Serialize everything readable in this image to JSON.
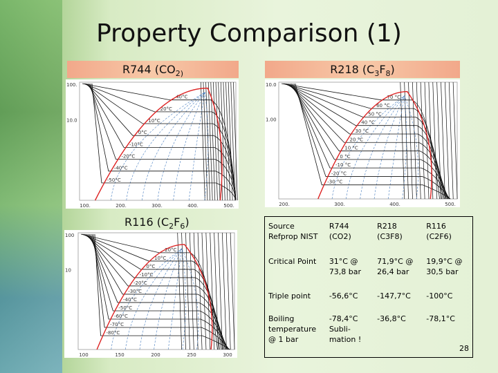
{
  "title": "Property Comparison (1)",
  "panels": [
    {
      "label": [
        "R744 (CO",
        "2)"
      ],
      "yticks": [
        "100.",
        "10.0"
      ],
      "xticks": [
        "100.",
        "200.",
        "300.",
        "400.",
        "500."
      ],
      "isotherms": [
        "40°C",
        "20°C",
        "10°C",
        "0°C",
        "-10°C",
        "-20°C",
        "-40°C",
        "-50°C"
      ]
    },
    {
      "label": [
        "R218 (C",
        "3",
        "F",
        "8",
        ")"
      ],
      "yticks": [
        "10.0",
        "1.00"
      ],
      "xticks": [
        "200.",
        "300.",
        "400.",
        "500."
      ],
      "isotherms": [
        "70 °C",
        "60 °C",
        "50 °C",
        "40 °C",
        "30 °C",
        "20 °C",
        "10 °C",
        "0 °C",
        "-10 °C",
        "-20 °C",
        "-30 °C"
      ]
    },
    {
      "label": [
        "R116 (C",
        "2",
        "F",
        "6",
        ")"
      ],
      "yticks": [
        "100",
        "10"
      ],
      "xticks": [
        "100",
        "150",
        "200",
        "250",
        "300"
      ],
      "isotherms": [
        "20°C",
        "10°C",
        "0°C",
        "-10°C",
        "-20°C",
        "-30°C",
        "-40°C",
        "-50°C",
        "-60°C",
        "-70°C",
        "-80°C"
      ]
    }
  ],
  "table": {
    "rows": [
      [
        "Source Refprop NIST",
        "R744 (CO2)",
        "R218 (C3F8)",
        "R116 (C2F6)"
      ],
      [
        "Critical Point",
        "31°C @ 73,8 bar",
        "71,9°C @ 26,4 bar",
        "19,9°C @ 30,5 bar"
      ],
      [
        "Triple point",
        "-56,6°C",
        "-147,7°C",
        "-100°C"
      ],
      [
        "Boiling temperature @ 1 bar",
        "-78,4°C Subli-mation !",
        "-36,8°C",
        "-78,1°C"
      ]
    ]
  },
  "page_number": "28"
}
